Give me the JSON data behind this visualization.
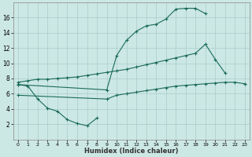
{
  "xlabel": "Humidex (Indice chaleur)",
  "bg_color": "#cce8e4",
  "grid_color": "#aaccca",
  "line_color": "#1a6b5a",
  "marker": "+",
  "xlim": [
    -0.5,
    23.5
  ],
  "ylim": [
    0,
    18
  ],
  "xticks": [
    0,
    1,
    2,
    3,
    4,
    5,
    6,
    7,
    8,
    9,
    10,
    11,
    12,
    13,
    14,
    15,
    16,
    17,
    18,
    19,
    20,
    21,
    22,
    23
  ],
  "yticks": [
    2,
    4,
    6,
    8,
    10,
    12,
    14,
    16
  ],
  "curve_dip_x": [
    0,
    1,
    2,
    3,
    4,
    5,
    6,
    7,
    8
  ],
  "curve_dip_y": [
    7.2,
    7.0,
    5.3,
    4.1,
    3.7,
    2.6,
    2.1,
    1.8,
    2.8
  ],
  "curve_top_x": [
    0,
    9,
    10,
    11,
    12,
    13,
    14,
    15,
    16,
    17,
    18,
    19
  ],
  "curve_top_y": [
    7.2,
    6.5,
    11.0,
    13.0,
    14.2,
    14.9,
    15.1,
    15.8,
    17.1,
    17.2,
    17.2,
    16.5
  ],
  "curve_mid_x": [
    0,
    1,
    2,
    3,
    4,
    5,
    6,
    7,
    8,
    9,
    10,
    11,
    12,
    13,
    14,
    15,
    16,
    17,
    18,
    19,
    20,
    21,
    22,
    23
  ],
  "curve_mid_y": [
    7.5,
    7.7,
    7.9,
    7.9,
    8.0,
    8.1,
    8.2,
    8.4,
    8.6,
    8.8,
    9.0,
    9.2,
    9.5,
    9.8,
    10.1,
    10.4,
    10.7,
    11.0,
    11.3,
    12.5,
    10.5,
    8.7,
    null,
    7.3
  ],
  "curve_bot_x": [
    0,
    9,
    10,
    11,
    12,
    13,
    14,
    15,
    16,
    17,
    18,
    19,
    20,
    21,
    22,
    23
  ],
  "curve_bot_y": [
    5.8,
    5.3,
    5.8,
    6.0,
    6.2,
    6.4,
    6.6,
    6.8,
    7.0,
    7.1,
    7.2,
    7.3,
    7.4,
    7.5,
    7.5,
    7.3
  ]
}
